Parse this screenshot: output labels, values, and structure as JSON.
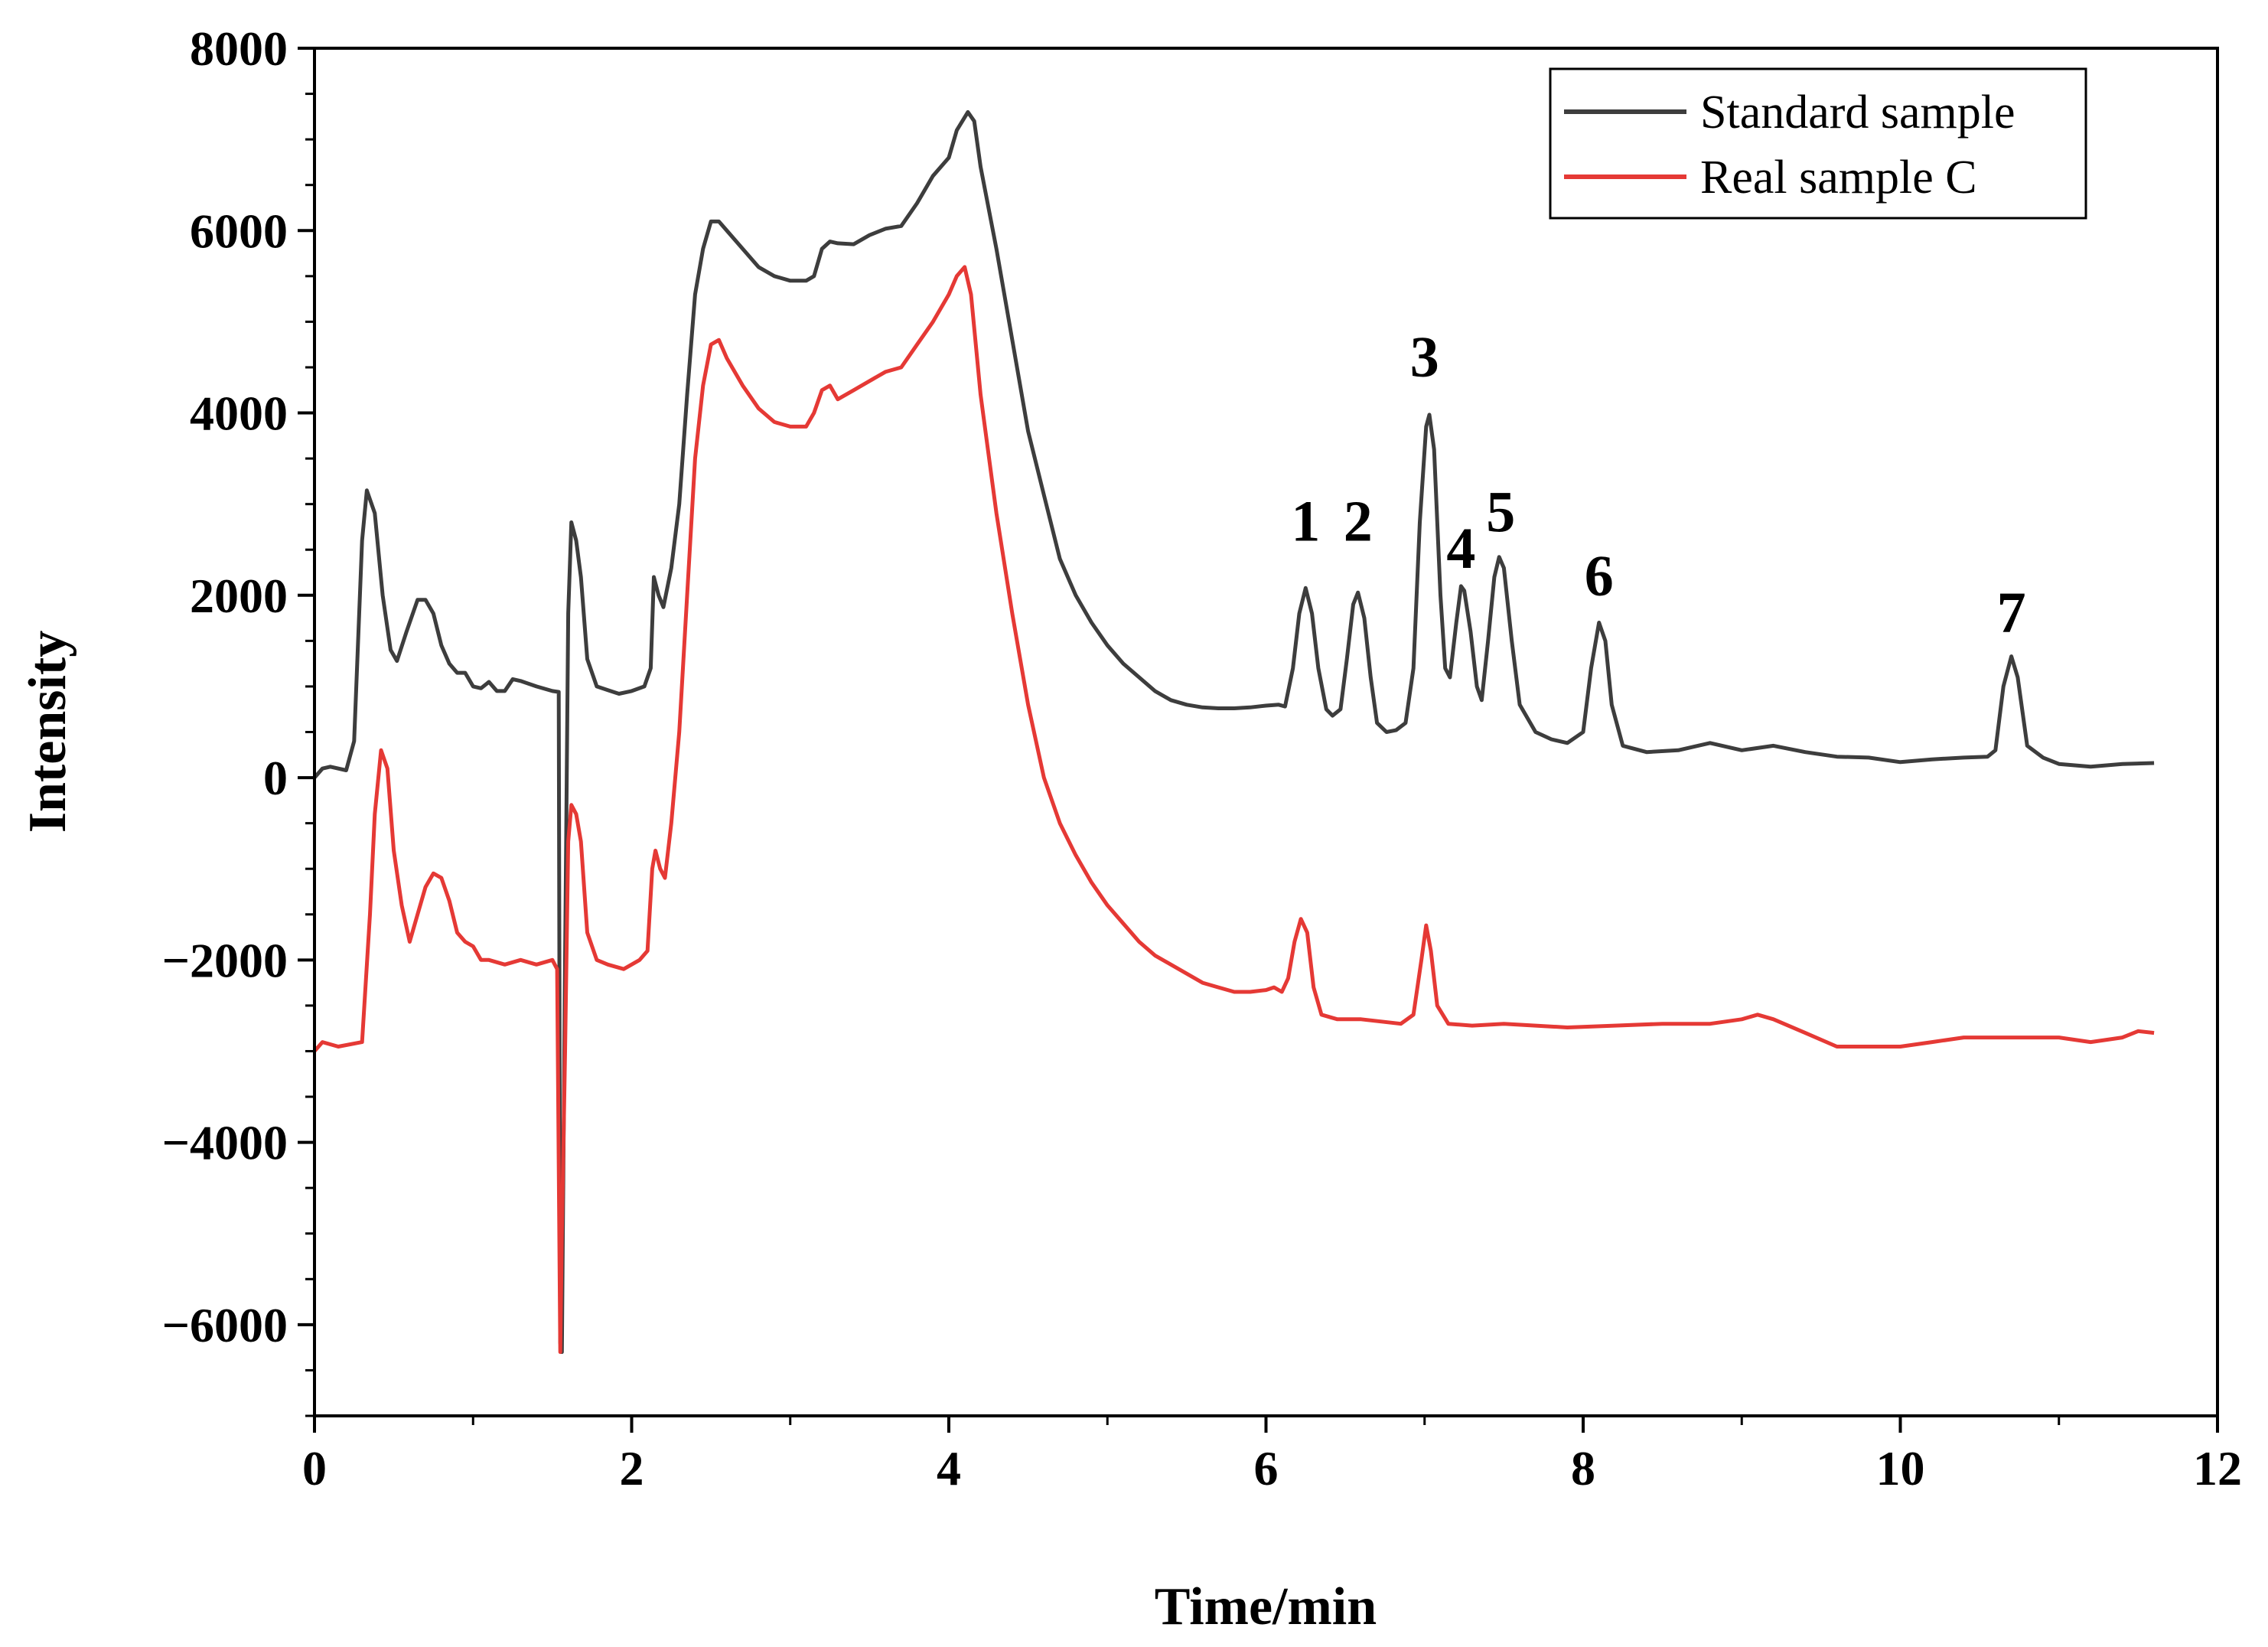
{
  "chart_data": {
    "type": "line",
    "title": "",
    "xlabel": "Time/min",
    "ylabel": "Intensity",
    "xlim": [
      0,
      12
    ],
    "ylim": [
      -7000,
      8000
    ],
    "xticks": [
      0,
      2,
      4,
      6,
      8,
      10,
      12
    ],
    "yticks": [
      -6000,
      -4000,
      -2000,
      0,
      2000,
      4000,
      6000,
      8000
    ],
    "ytick_labels": [
      "−6000",
      "−4000",
      "−2000",
      "0",
      "2000",
      "4000",
      "6000",
      "8000"
    ],
    "legend_position": "top-right",
    "series": [
      {
        "name": "Standard sample",
        "color": "#3d3d3d",
        "points": [
          [
            0,
            0
          ],
          [
            0.05,
            100
          ],
          [
            0.1,
            120
          ],
          [
            0.2,
            80
          ],
          [
            0.25,
            400
          ],
          [
            0.3,
            2600
          ],
          [
            0.33,
            3150
          ],
          [
            0.38,
            2900
          ],
          [
            0.43,
            2000
          ],
          [
            0.48,
            1400
          ],
          [
            0.52,
            1280
          ],
          [
            0.58,
            1600
          ],
          [
            0.65,
            1950
          ],
          [
            0.7,
            1950
          ],
          [
            0.75,
            1800
          ],
          [
            0.8,
            1450
          ],
          [
            0.85,
            1250
          ],
          [
            0.9,
            1150
          ],
          [
            0.95,
            1150
          ],
          [
            1.0,
            1000
          ],
          [
            1.05,
            980
          ],
          [
            1.1,
            1050
          ],
          [
            1.15,
            950
          ],
          [
            1.2,
            950
          ],
          [
            1.25,
            1080
          ],
          [
            1.3,
            1060
          ],
          [
            1.4,
            1000
          ],
          [
            1.5,
            950
          ],
          [
            1.54,
            940
          ],
          [
            1.55,
            -6200
          ],
          [
            1.56,
            -6300
          ],
          [
            1.58,
            -2000
          ],
          [
            1.6,
            1800
          ],
          [
            1.62,
            2800
          ],
          [
            1.65,
            2600
          ],
          [
            1.68,
            2200
          ],
          [
            1.72,
            1300
          ],
          [
            1.78,
            1000
          ],
          [
            1.85,
            960
          ],
          [
            1.92,
            920
          ],
          [
            2.0,
            950
          ],
          [
            2.08,
            1000
          ],
          [
            2.12,
            1200
          ],
          [
            2.14,
            2200
          ],
          [
            2.17,
            2000
          ],
          [
            2.2,
            1870
          ],
          [
            2.25,
            2300
          ],
          [
            2.3,
            3000
          ],
          [
            2.35,
            4200
          ],
          [
            2.4,
            5300
          ],
          [
            2.45,
            5800
          ],
          [
            2.5,
            6100
          ],
          [
            2.55,
            6100
          ],
          [
            2.6,
            6000
          ],
          [
            2.7,
            5800
          ],
          [
            2.8,
            5600
          ],
          [
            2.9,
            5500
          ],
          [
            3.0,
            5450
          ],
          [
            3.1,
            5450
          ],
          [
            3.15,
            5500
          ],
          [
            3.2,
            5800
          ],
          [
            3.25,
            5880
          ],
          [
            3.3,
            5860
          ],
          [
            3.4,
            5850
          ],
          [
            3.5,
            5950
          ],
          [
            3.6,
            6020
          ],
          [
            3.7,
            6050
          ],
          [
            3.8,
            6300
          ],
          [
            3.9,
            6600
          ],
          [
            4.0,
            6800
          ],
          [
            4.05,
            7100
          ],
          [
            4.12,
            7300
          ],
          [
            4.16,
            7200
          ],
          [
            4.2,
            6700
          ],
          [
            4.3,
            5800
          ],
          [
            4.4,
            4800
          ],
          [
            4.5,
            3800
          ],
          [
            4.6,
            3100
          ],
          [
            4.7,
            2400
          ],
          [
            4.8,
            2000
          ],
          [
            4.9,
            1700
          ],
          [
            5.0,
            1450
          ],
          [
            5.1,
            1250
          ],
          [
            5.2,
            1100
          ],
          [
            5.3,
            950
          ],
          [
            5.4,
            850
          ],
          [
            5.5,
            800
          ],
          [
            5.6,
            770
          ],
          [
            5.7,
            760
          ],
          [
            5.8,
            760
          ],
          [
            5.9,
            770
          ],
          [
            6.0,
            790
          ],
          [
            6.08,
            800
          ],
          [
            6.12,
            780
          ],
          [
            6.17,
            1200
          ],
          [
            6.21,
            1800
          ],
          [
            6.25,
            2080
          ],
          [
            6.29,
            1800
          ],
          [
            6.33,
            1200
          ],
          [
            6.38,
            750
          ],
          [
            6.42,
            680
          ],
          [
            6.47,
            750
          ],
          [
            6.51,
            1300
          ],
          [
            6.55,
            1900
          ],
          [
            6.58,
            2030
          ],
          [
            6.62,
            1750
          ],
          [
            6.66,
            1100
          ],
          [
            6.7,
            600
          ],
          [
            6.76,
            500
          ],
          [
            6.82,
            520
          ],
          [
            6.88,
            600
          ],
          [
            6.93,
            1200
          ],
          [
            6.97,
            2800
          ],
          [
            7.01,
            3850
          ],
          [
            7.03,
            3980
          ],
          [
            7.06,
            3600
          ],
          [
            7.1,
            2000
          ],
          [
            7.13,
            1200
          ],
          [
            7.16,
            1100
          ],
          [
            7.2,
            1700
          ],
          [
            7.23,
            2100
          ],
          [
            7.25,
            2050
          ],
          [
            7.29,
            1600
          ],
          [
            7.33,
            1000
          ],
          [
            7.36,
            850
          ],
          [
            7.4,
            1500
          ],
          [
            7.44,
            2200
          ],
          [
            7.47,
            2420
          ],
          [
            7.5,
            2300
          ],
          [
            7.55,
            1500
          ],
          [
            7.6,
            800
          ],
          [
            7.7,
            500
          ],
          [
            7.8,
            420
          ],
          [
            7.9,
            380
          ],
          [
            8.0,
            500
          ],
          [
            8.05,
            1200
          ],
          [
            8.1,
            1700
          ],
          [
            8.14,
            1500
          ],
          [
            8.18,
            800
          ],
          [
            8.25,
            350
          ],
          [
            8.4,
            280
          ],
          [
            8.6,
            300
          ],
          [
            8.8,
            380
          ],
          [
            9.0,
            300
          ],
          [
            9.2,
            350
          ],
          [
            9.4,
            280
          ],
          [
            9.6,
            230
          ],
          [
            9.8,
            220
          ],
          [
            10.0,
            170
          ],
          [
            10.2,
            200
          ],
          [
            10.4,
            220
          ],
          [
            10.55,
            230
          ],
          [
            10.6,
            300
          ],
          [
            10.65,
            1000
          ],
          [
            10.7,
            1330
          ],
          [
            10.74,
            1100
          ],
          [
            10.8,
            350
          ],
          [
            10.9,
            220
          ],
          [
            11.0,
            150
          ],
          [
            11.2,
            120
          ],
          [
            11.4,
            150
          ],
          [
            11.6,
            160
          ]
        ]
      },
      {
        "name": "Real sample C",
        "color": "#e53935",
        "points": [
          [
            0,
            -3000
          ],
          [
            0.05,
            -2900
          ],
          [
            0.15,
            -2950
          ],
          [
            0.3,
            -2900
          ],
          [
            0.35,
            -1500
          ],
          [
            0.38,
            -400
          ],
          [
            0.42,
            300
          ],
          [
            0.46,
            100
          ],
          [
            0.5,
            -800
          ],
          [
            0.55,
            -1400
          ],
          [
            0.6,
            -1800
          ],
          [
            0.65,
            -1500
          ],
          [
            0.7,
            -1200
          ],
          [
            0.75,
            -1050
          ],
          [
            0.8,
            -1100
          ],
          [
            0.85,
            -1350
          ],
          [
            0.9,
            -1700
          ],
          [
            0.95,
            -1800
          ],
          [
            1.0,
            -1850
          ],
          [
            1.05,
            -2000
          ],
          [
            1.1,
            -2000
          ],
          [
            1.2,
            -2050
          ],
          [
            1.3,
            -2000
          ],
          [
            1.4,
            -2050
          ],
          [
            1.5,
            -2000
          ],
          [
            1.53,
            -2100
          ],
          [
            1.55,
            -6300
          ],
          [
            1.56,
            -5000
          ],
          [
            1.58,
            -3000
          ],
          [
            1.6,
            -700
          ],
          [
            1.62,
            -300
          ],
          [
            1.65,
            -400
          ],
          [
            1.68,
            -700
          ],
          [
            1.72,
            -1700
          ],
          [
            1.78,
            -2000
          ],
          [
            1.85,
            -2050
          ],
          [
            1.95,
            -2100
          ],
          [
            2.05,
            -2000
          ],
          [
            2.1,
            -1900
          ],
          [
            2.13,
            -1000
          ],
          [
            2.15,
            -800
          ],
          [
            2.18,
            -1000
          ],
          [
            2.21,
            -1100
          ],
          [
            2.25,
            -500
          ],
          [
            2.3,
            500
          ],
          [
            2.35,
            2000
          ],
          [
            2.4,
            3500
          ],
          [
            2.45,
            4300
          ],
          [
            2.5,
            4750
          ],
          [
            2.55,
            4800
          ],
          [
            2.6,
            4600
          ],
          [
            2.7,
            4300
          ],
          [
            2.8,
            4050
          ],
          [
            2.9,
            3900
          ],
          [
            3.0,
            3850
          ],
          [
            3.1,
            3850
          ],
          [
            3.15,
            4000
          ],
          [
            3.2,
            4250
          ],
          [
            3.25,
            4300
          ],
          [
            3.3,
            4150
          ],
          [
            3.4,
            4250
          ],
          [
            3.5,
            4350
          ],
          [
            3.6,
            4450
          ],
          [
            3.7,
            4500
          ],
          [
            3.8,
            4750
          ],
          [
            3.9,
            5000
          ],
          [
            4.0,
            5300
          ],
          [
            4.05,
            5500
          ],
          [
            4.1,
            5600
          ],
          [
            4.14,
            5300
          ],
          [
            4.2,
            4200
          ],
          [
            4.3,
            2900
          ],
          [
            4.4,
            1800
          ],
          [
            4.5,
            800
          ],
          [
            4.6,
            0
          ],
          [
            4.7,
            -500
          ],
          [
            4.8,
            -850
          ],
          [
            4.9,
            -1150
          ],
          [
            5.0,
            -1400
          ],
          [
            5.1,
            -1600
          ],
          [
            5.2,
            -1800
          ],
          [
            5.3,
            -1950
          ],
          [
            5.4,
            -2050
          ],
          [
            5.5,
            -2150
          ],
          [
            5.6,
            -2250
          ],
          [
            5.7,
            -2300
          ],
          [
            5.8,
            -2350
          ],
          [
            5.9,
            -2350
          ],
          [
            6.0,
            -2330
          ],
          [
            6.05,
            -2300
          ],
          [
            6.1,
            -2350
          ],
          [
            6.14,
            -2200
          ],
          [
            6.18,
            -1800
          ],
          [
            6.22,
            -1550
          ],
          [
            6.26,
            -1700
          ],
          [
            6.3,
            -2300
          ],
          [
            6.35,
            -2600
          ],
          [
            6.45,
            -2650
          ],
          [
            6.6,
            -2650
          ],
          [
            6.75,
            -2680
          ],
          [
            6.85,
            -2700
          ],
          [
            6.93,
            -2600
          ],
          [
            6.98,
            -2000
          ],
          [
            7.01,
            -1620
          ],
          [
            7.04,
            -1900
          ],
          [
            7.08,
            -2500
          ],
          [
            7.15,
            -2700
          ],
          [
            7.3,
            -2720
          ],
          [
            7.5,
            -2700
          ],
          [
            7.7,
            -2720
          ],
          [
            7.9,
            -2740
          ],
          [
            8.2,
            -2720
          ],
          [
            8.5,
            -2700
          ],
          [
            8.8,
            -2700
          ],
          [
            9.0,
            -2650
          ],
          [
            9.1,
            -2600
          ],
          [
            9.2,
            -2650
          ],
          [
            9.4,
            -2800
          ],
          [
            9.6,
            -2950
          ],
          [
            9.8,
            -2950
          ],
          [
            10.0,
            -2950
          ],
          [
            10.2,
            -2900
          ],
          [
            10.4,
            -2850
          ],
          [
            10.6,
            -2850
          ],
          [
            10.8,
            -2850
          ],
          [
            11.0,
            -2850
          ],
          [
            11.2,
            -2900
          ],
          [
            11.4,
            -2850
          ],
          [
            11.5,
            -2780
          ],
          [
            11.6,
            -2800
          ]
        ]
      }
    ],
    "annotations": [
      {
        "text": "1",
        "x": 6.25,
        "y": 2600
      },
      {
        "text": "2",
        "x": 6.58,
        "y": 2600
      },
      {
        "text": "3",
        "x": 7.0,
        "y": 4400
      },
      {
        "text": "4",
        "x": 7.23,
        "y": 2300
      },
      {
        "text": "5",
        "x": 7.48,
        "y": 2700
      },
      {
        "text": "6",
        "x": 8.1,
        "y": 2000
      },
      {
        "text": "7",
        "x": 10.7,
        "y": 1600
      }
    ]
  }
}
